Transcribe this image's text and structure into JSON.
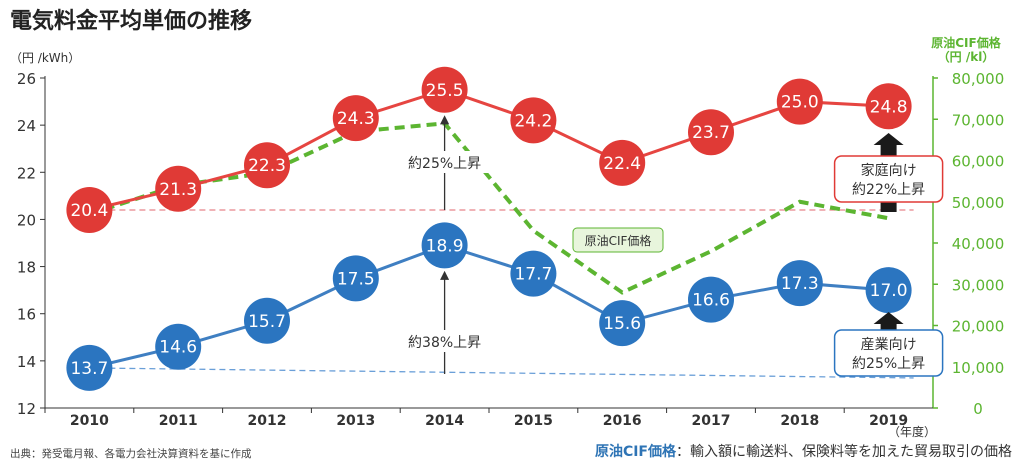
{
  "title": "電気料金平均単価の推移",
  "source": "出典：発受電月報、各電力会社決算資料を基に作成",
  "footnote": {
    "label": "原油CIF価格",
    "text": "：輸入額に輸送料、保険料等を加えた貿易取引の価格"
  },
  "chart_data": {
    "type": "line",
    "x": [
      2010,
      2011,
      2012,
      2013,
      2014,
      2015,
      2016,
      2017,
      2018,
      2019
    ],
    "xunit": "（年度）",
    "left_axis": {
      "unit": "（円 /kWh）",
      "ylim": [
        12,
        26
      ],
      "ticks": [
        12,
        14,
        16,
        18,
        20,
        22,
        24,
        26
      ]
    },
    "right_axis": {
      "title": "原油CIF価格",
      "unit": "（円 /kl）",
      "ylim": [
        0,
        80000
      ],
      "ticks": [
        "0",
        "10,000",
        "20,000",
        "30,000",
        "40,000",
        "50,000",
        "60,000",
        "70,000",
        "80,000"
      ]
    },
    "series": [
      {
        "key": "household",
        "axis": "left",
        "color": "#e03a36",
        "line": "#e64541",
        "values": [
          20.4,
          21.3,
          22.3,
          24.3,
          25.5,
          24.2,
          22.4,
          23.7,
          25.0,
          24.8
        ],
        "labels": [
          "20.4",
          "21.3",
          "22.3",
          "24.3",
          "25.5",
          "24.2",
          "22.4",
          "23.7",
          "25.0",
          "24.8"
        ]
      },
      {
        "key": "industrial",
        "axis": "left",
        "color": "#2b75c0",
        "line": "#3f7fc2",
        "values": [
          13.7,
          14.6,
          15.7,
          17.5,
          18.9,
          17.7,
          15.6,
          16.6,
          17.3,
          17.0
        ],
        "labels": [
          "13.7",
          "14.6",
          "15.7",
          "17.5",
          "18.9",
          "17.7",
          "15.6",
          "16.6",
          "17.3",
          "17.0"
        ]
      },
      {
        "key": "crude",
        "name": "原油CIF価格",
        "axis": "right",
        "color": "#5cb531",
        "values": [
          47000,
          54000,
          57000,
          67000,
          69000,
          43000,
          28000,
          38000,
          50000,
          46000
        ]
      }
    ],
    "reference_lines": [
      {
        "series": "household",
        "value": 20.4,
        "color": "#e8858a"
      },
      {
        "series": "industrial",
        "value": 13.7,
        "color": "#6a9fd8"
      }
    ],
    "annotations": {
      "household_rise": "約25%上昇",
      "industrial_rise": "約38%上昇",
      "household_box": [
        "家庭向け",
        "約22%上昇"
      ],
      "industrial_box": [
        "産業向け",
        "約25%上昇"
      ],
      "crude_label": "原油CIF価格"
    }
  }
}
